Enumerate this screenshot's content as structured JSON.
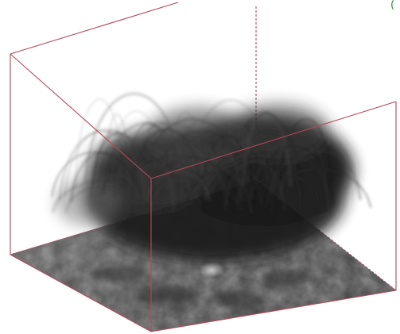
{
  "figure": {
    "kind": "3D volume rendering of coronal magnetic field loops above a photospheric magnetogram",
    "box_edge_color": "#b5485a",
    "volume_color": "#141414",
    "base_plane_color": "#5e5e5e",
    "corner_mark_color": "#2a8a2a",
    "corner_mark": "("
  }
}
